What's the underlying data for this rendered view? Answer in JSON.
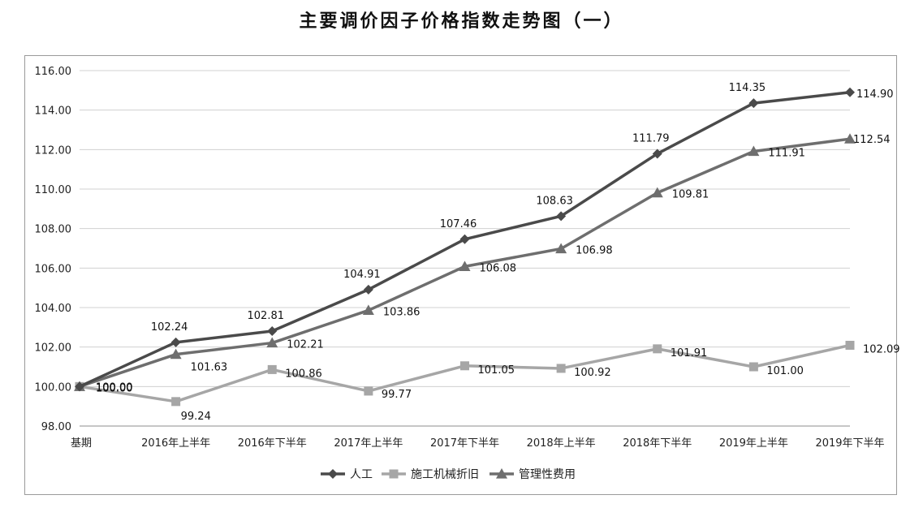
{
  "chart_data": {
    "type": "line",
    "title": "主要调价因子价格指数走势图（一）",
    "categories": [
      "基期",
      "2016年上半年",
      "2016年下半年",
      "2017年上半年",
      "2017年下半年",
      "2018年上半年",
      "2018年下半年",
      "2019年上半年",
      "2019年下半年"
    ],
    "ylim": [
      98,
      116
    ],
    "yticks": [
      "98.00",
      "100.00",
      "102.00",
      "104.00",
      "106.00",
      "108.00",
      "110.00",
      "112.00",
      "114.00",
      "116.00"
    ],
    "grid": true,
    "legend_position": "bottom",
    "series": [
      {
        "name": "人工",
        "marker": "diamond",
        "color": "#4a4a4a",
        "values": [
          100.0,
          102.24,
          102.81,
          104.91,
          107.46,
          108.63,
          111.79,
          114.35,
          114.9
        ],
        "labels": [
          "100.00",
          "102.24",
          "102.81",
          "104.91",
          "107.46",
          "108.63",
          "111.79",
          "114.35",
          "114.90"
        ]
      },
      {
        "name": "施工机械折旧",
        "marker": "square",
        "color": "#a6a6a6",
        "values": [
          100.0,
          99.24,
          100.86,
          99.77,
          101.05,
          100.92,
          101.91,
          101.0,
          102.09
        ],
        "labels": [
          "100.00",
          "99.24",
          "100.86",
          "99.77",
          "101.05",
          "100.92",
          "101.91",
          "101.00",
          "102.09"
        ]
      },
      {
        "name": "管理性费用",
        "marker": "triangle",
        "color": "#6e6e6e",
        "values": [
          100.0,
          101.63,
          102.21,
          103.86,
          106.08,
          106.98,
          109.81,
          111.91,
          112.54
        ],
        "labels": [
          "100.00",
          "101.63",
          "102.21",
          "103.86",
          "106.08",
          "106.98",
          "109.81",
          "111.91",
          "112.54"
        ]
      }
    ]
  }
}
